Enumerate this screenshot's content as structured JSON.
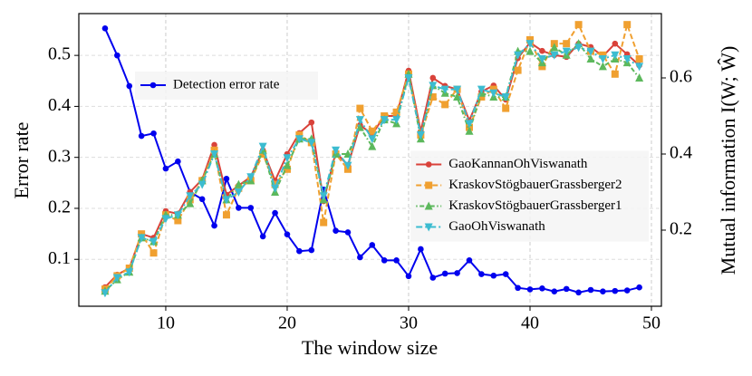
{
  "chart_data": {
    "type": "line",
    "x_label": "The window size",
    "y_label": "Error rate",
    "y2_label": "Mutual information I(W; Ŵ)",
    "x": [
      5,
      6,
      7,
      8,
      9,
      10,
      11,
      12,
      13,
      14,
      15,
      16,
      17,
      18,
      19,
      20,
      21,
      22,
      23,
      24,
      25,
      26,
      27,
      28,
      29,
      30,
      31,
      32,
      33,
      34,
      35,
      36,
      37,
      38,
      39,
      40,
      41,
      42,
      43,
      44,
      45,
      46,
      47,
      48,
      49
    ],
    "xlim": [
      2.84,
      50.82
    ],
    "xticks": [
      10,
      20,
      30,
      40,
      50
    ],
    "ylim": [
      0.008,
      0.582
    ],
    "yticks": [
      0.1,
      0.2,
      0.3,
      0.4,
      0.5
    ],
    "y2lim": [
      0,
      0.769
    ],
    "y2ticks": [
      0.2,
      0.4,
      0.6
    ],
    "grid": true,
    "legend_loc": "upper left",
    "legend2_loc": "center right",
    "series": [
      {
        "name": "Detection error rate",
        "color": "#0000ee",
        "marker": "circle",
        "linestyle": "solid",
        "axis": "y",
        "values": [
          0.553,
          0.5,
          0.44,
          0.342,
          0.347,
          0.278,
          0.292,
          0.232,
          0.218,
          0.166,
          0.258,
          0.201,
          0.201,
          0.145,
          0.191,
          0.149,
          0.116,
          0.118,
          0.237,
          0.156,
          0.153,
          0.104,
          0.128,
          0.098,
          0.098,
          0.067,
          0.12,
          0.064,
          0.072,
          0.073,
          0.098,
          0.071,
          0.068,
          0.071,
          0.044,
          0.041,
          0.043,
          0.037,
          0.042,
          0.035,
          0.04,
          0.037,
          0.038,
          0.039,
          0.045
        ]
      },
      {
        "name": "GaoKannanOhViswanath",
        "color": "#d9423a",
        "marker": "circle",
        "linestyle": "solid",
        "axis": "y2",
        "values": [
          0.05,
          0.083,
          0.1,
          0.19,
          0.18,
          0.25,
          0.243,
          0.3,
          0.333,
          0.424,
          0.293,
          0.317,
          0.34,
          0.41,
          0.33,
          0.4,
          0.455,
          0.483,
          0.276,
          0.405,
          0.37,
          0.476,
          0.452,
          0.5,
          0.5,
          0.619,
          0.46,
          0.6,
          0.579,
          0.57,
          0.488,
          0.564,
          0.58,
          0.543,
          0.652,
          0.693,
          0.671,
          0.66,
          0.655,
          0.69,
          0.681,
          0.657,
          0.69,
          0.662,
          0.633
        ]
      },
      {
        "name": "KraskovStögbauerGrassberger2",
        "color": "#f0a030",
        "marker": "square",
        "linestyle": "dashed",
        "axis": "y2",
        "values": [
          0.045,
          0.08,
          0.1,
          0.19,
          0.14,
          0.24,
          0.225,
          0.28,
          0.33,
          0.41,
          0.24,
          0.31,
          0.33,
          0.4,
          0.32,
          0.36,
          0.45,
          0.43,
          0.22,
          0.4,
          0.36,
          0.52,
          0.46,
          0.5,
          0.51,
          0.61,
          0.45,
          0.55,
          0.53,
          0.57,
          0.47,
          0.55,
          0.57,
          0.52,
          0.62,
          0.7,
          0.63,
          0.69,
          0.69,
          0.74,
          0.67,
          0.66,
          0.61,
          0.74,
          0.65
        ]
      },
      {
        "name": "KraskovStögbauerGrassberger1",
        "color": "#5cb85c",
        "marker": "triangle-up",
        "linestyle": "dashdotdot",
        "axis": "y2",
        "values": [
          0.04,
          0.07,
          0.09,
          0.18,
          0.17,
          0.24,
          0.24,
          0.27,
          0.33,
          0.4,
          0.28,
          0.32,
          0.33,
          0.41,
          0.3,
          0.37,
          0.44,
          0.44,
          0.28,
          0.4,
          0.4,
          0.47,
          0.42,
          0.49,
          0.48,
          0.61,
          0.44,
          0.58,
          0.56,
          0.55,
          0.46,
          0.56,
          0.55,
          0.55,
          0.67,
          0.67,
          0.64,
          0.68,
          0.66,
          0.69,
          0.65,
          0.63,
          0.65,
          0.64,
          0.6
        ]
      },
      {
        "name": "GaoOhViswanath",
        "color": "#3cbcd0",
        "marker": "triangle-down",
        "linestyle": "dashdot",
        "axis": "y2",
        "values": [
          0.035,
          0.075,
          0.09,
          0.18,
          0.17,
          0.23,
          0.24,
          0.29,
          0.32,
          0.4,
          0.28,
          0.3,
          0.34,
          0.42,
          0.31,
          0.39,
          0.44,
          0.43,
          0.29,
          0.41,
          0.37,
          0.49,
          0.44,
          0.49,
          0.49,
          0.6,
          0.45,
          0.58,
          0.57,
          0.57,
          0.48,
          0.57,
          0.56,
          0.55,
          0.66,
          0.69,
          0.65,
          0.66,
          0.67,
          0.68,
          0.67,
          0.65,
          0.66,
          0.65,
          0.63
        ]
      }
    ]
  }
}
